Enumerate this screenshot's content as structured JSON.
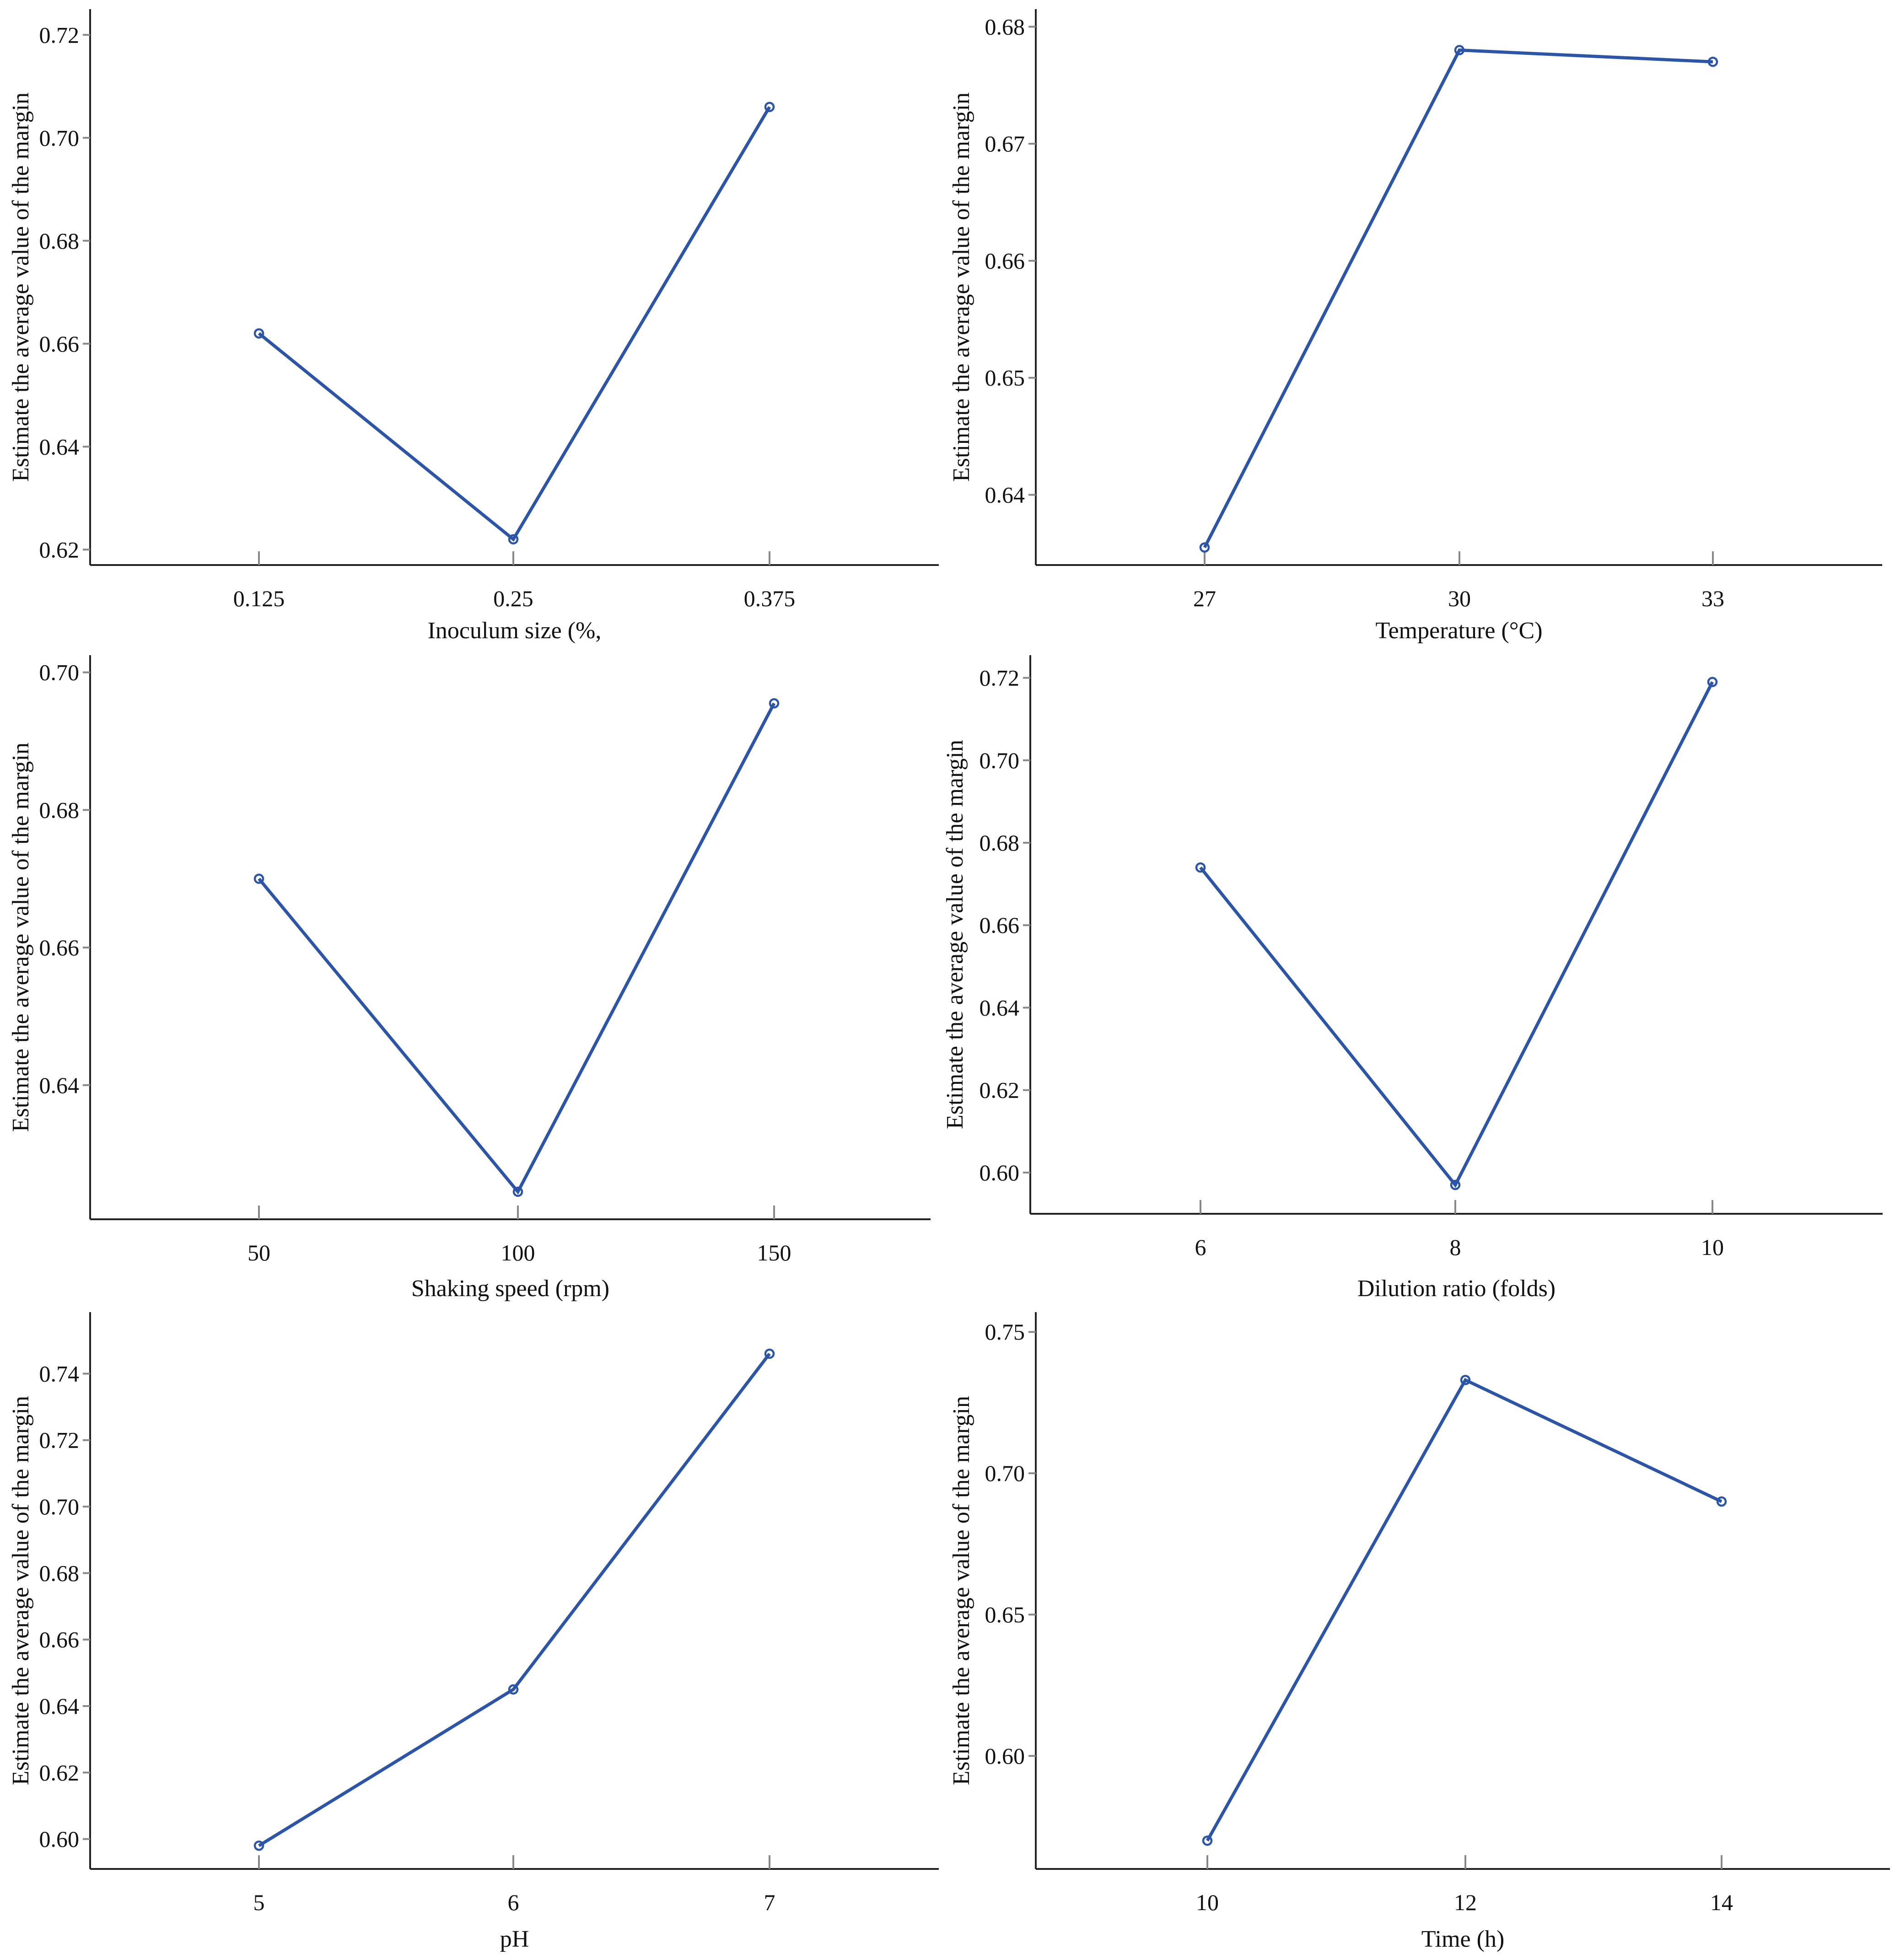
{
  "figure": {
    "series_color": "#2c55a8",
    "point_marker": "open-circle"
  },
  "chart_data": [
    {
      "type": "line",
      "title": "",
      "xlabel": "Inoculum size (%,",
      "ylabel": "Estimate the average value of the margin",
      "categories": [
        "0.125",
        "0.25",
        "0.375"
      ],
      "values": [
        0.662,
        0.622,
        0.706
      ],
      "yticks": [
        0.62,
        0.64,
        0.66,
        0.68,
        0.7,
        0.72
      ],
      "ylim": [
        0.617,
        0.725
      ],
      "grid": false
    },
    {
      "type": "line",
      "title": "",
      "xlabel": "Temperature (°C)",
      "ylabel": "Estimate the average value of the margin",
      "categories": [
        "27",
        "30",
        "33"
      ],
      "values": [
        0.6355,
        0.678,
        0.677
      ],
      "yticks": [
        0.64,
        0.65,
        0.66,
        0.67,
        0.68
      ],
      "ylim": [
        0.634,
        0.6815
      ],
      "grid": false
    },
    {
      "type": "line",
      "title": "",
      "xlabel": "Shaking speed (rpm)",
      "ylabel": "Estimate the average value of the margin",
      "categories": [
        "50",
        "100",
        "150"
      ],
      "values": [
        0.67,
        0.6245,
        0.6955
      ],
      "yticks": [
        0.64,
        0.66,
        0.68,
        0.7
      ],
      "ylim": [
        0.6205,
        0.7025
      ],
      "grid": false
    },
    {
      "type": "line",
      "title": "",
      "xlabel": "Dilution ratio (folds)",
      "ylabel": "Estimate the average value of the margin",
      "categories": [
        "6",
        "8",
        "10"
      ],
      "values": [
        0.674,
        0.597,
        0.719
      ],
      "yticks": [
        0.6,
        0.62,
        0.64,
        0.66,
        0.68,
        0.7,
        0.72
      ],
      "ylim": [
        0.59,
        0.7255
      ],
      "grid": false
    },
    {
      "type": "line",
      "title": "",
      "xlabel": "pH",
      "ylabel": "Estimate the average value of the margin",
      "categories": [
        "5",
        "6",
        "7"
      ],
      "values": [
        0.598,
        0.645,
        0.746
      ],
      "yticks": [
        0.6,
        0.62,
        0.64,
        0.66,
        0.68,
        0.7,
        0.72,
        0.74
      ],
      "ylim": [
        0.591,
        0.7585
      ],
      "grid": false
    },
    {
      "type": "line",
      "title": "",
      "xlabel": "Time (h)",
      "ylabel": "Estimate the average value of the margin",
      "categories": [
        "10",
        "12",
        "14"
      ],
      "values": [
        0.57,
        0.733,
        0.69
      ],
      "yticks": [
        0.6,
        0.65,
        0.7,
        0.75
      ],
      "ylim": [
        0.56,
        0.757
      ],
      "grid": false
    }
  ]
}
